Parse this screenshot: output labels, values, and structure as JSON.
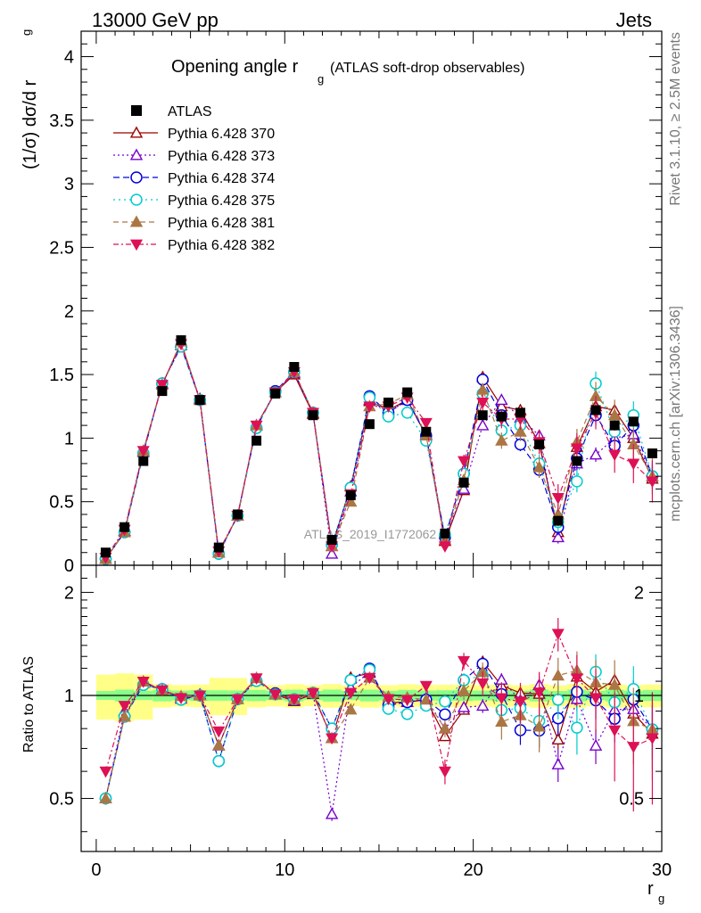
{
  "header": {
    "energy_label": "13000 GeV pp",
    "process_label": "Jets",
    "rivet_label": "Rivet 3.1.10, ≥ 2.5M events",
    "mcplots_label": "mcplots.cern.ch [arXiv:1306.3436]",
    "analysis_label": "ATLAS_2019_I1772062"
  },
  "chart_data": [
    {
      "type": "line",
      "title": "Opening angle r",
      "title_sub": "g",
      "title_note": "(ATLAS soft-drop observables)",
      "ylabel": "(1/σ) dσ/d r",
      "ylabel_sub": "g",
      "xlabel": "r",
      "xlabel_sub": "g",
      "xlim": [
        -0.8,
        30
      ],
      "ylim": [
        0,
        4.2
      ],
      "x_ticks": [
        "0",
        "10",
        "20",
        "30"
      ],
      "y_ticks": [
        "0",
        "0.5",
        "1",
        "1.5",
        "2",
        "2.5",
        "3",
        "3.5",
        "4"
      ],
      "x": [
        0.5,
        1.5,
        2.5,
        3.5,
        4.5,
        5.5,
        6.5,
        7.5,
        8.5,
        9.5,
        10.5,
        11.5,
        12.5,
        13.5,
        14.5,
        15.5,
        16.5,
        17.5,
        18.5,
        19.5,
        20.5,
        21.5,
        22.5,
        23.5,
        24.5,
        25.5,
        26.5,
        27.5,
        28.5,
        29.5
      ],
      "data": {
        "name": "ATLAS",
        "values": [
          0.1,
          0.3,
          0.82,
          1.37,
          1.77,
          1.3,
          0.14,
          0.4,
          0.98,
          1.35,
          1.56,
          1.18,
          0.2,
          0.55,
          1.11,
          1.28,
          1.36,
          1.05,
          0.25,
          0.65,
          1.18,
          1.17,
          1.2,
          0.95,
          0.35,
          0.82,
          1.22,
          1.1,
          1.13,
          0.88
        ]
      },
      "series": [
        {
          "name": "Pythia 6.428 370",
          "color": "#990000",
          "marker": "triangle-open",
          "values": [
            0.05,
            0.26,
            0.9,
            1.42,
            1.75,
            1.3,
            0.1,
            0.39,
            1.1,
            1.36,
            1.5,
            1.19,
            0.15,
            0.62,
            1.29,
            1.22,
            1.3,
            1.02,
            0.19,
            0.59,
            1.48,
            1.25,
            1.22,
            0.96,
            0.26,
            0.93,
            1.25,
            1.22,
            1.0,
            0.68
          ]
        },
        {
          "name": "Pythia 6.428 373",
          "color": "#7700cc",
          "marker": "triangle-open",
          "values": [
            0.05,
            0.27,
            0.89,
            1.43,
            1.73,
            1.31,
            0.1,
            0.39,
            1.1,
            1.36,
            1.51,
            1.2,
            0.09,
            0.58,
            1.3,
            1.2,
            1.3,
            1.03,
            0.2,
            0.6,
            1.1,
            1.3,
            1.16,
            1.02,
            0.22,
            0.8,
            0.87,
            1.0,
            1.03,
            0.7
          ]
        },
        {
          "name": "Pythia 6.428 374",
          "color": "#0000dd",
          "marker": "circle-open",
          "values": [
            0.05,
            0.26,
            0.88,
            1.43,
            1.72,
            1.3,
            0.09,
            0.39,
            1.08,
            1.37,
            1.52,
            1.2,
            0.16,
            0.61,
            1.33,
            1.2,
            1.3,
            1.02,
            0.22,
            0.72,
            1.46,
            1.18,
            0.95,
            0.75,
            0.3,
            0.84,
            1.18,
            0.94,
            1.1,
            0.7
          ]
        },
        {
          "name": "Pythia 6.428 375",
          "color": "#00cccc",
          "marker": "circle-open",
          "values": [
            0.05,
            0.26,
            0.88,
            1.43,
            1.72,
            1.3,
            0.09,
            0.39,
            1.08,
            1.36,
            1.52,
            1.2,
            0.16,
            0.61,
            1.32,
            1.17,
            1.2,
            0.98,
            0.24,
            0.72,
            1.35,
            1.06,
            1.1,
            0.8,
            0.34,
            0.66,
            1.43,
            1.05,
            1.18,
            0.7
          ]
        },
        {
          "name": "Pythia 6.428 381",
          "color": "#aa7744",
          "marker": "triangle-filled",
          "values": [
            0.05,
            0.26,
            0.9,
            1.42,
            1.76,
            1.3,
            0.1,
            0.39,
            1.1,
            1.36,
            1.52,
            1.2,
            0.15,
            0.5,
            1.25,
            1.27,
            1.34,
            1.02,
            0.2,
            0.67,
            1.38,
            0.98,
            1.05,
            0.77,
            0.4,
            0.97,
            1.33,
            1.18,
            0.95,
            0.7
          ]
        },
        {
          "name": "Pythia 6.428 382",
          "color": "#dd1155",
          "marker": "triangle-down-filled",
          "values": [
            0.06,
            0.28,
            0.9,
            1.42,
            1.74,
            1.3,
            0.11,
            0.39,
            1.1,
            1.36,
            1.52,
            1.2,
            0.15,
            0.56,
            1.25,
            1.25,
            1.32,
            1.12,
            0.15,
            0.82,
            1.28,
            1.15,
            1.15,
            0.97,
            0.53,
            0.92,
            1.2,
            0.87,
            0.8,
            0.66
          ]
        }
      ],
      "legend_position": "top-left"
    },
    {
      "type": "line",
      "ylabel": "Ratio to ATLAS",
      "ylim": [
        0.35,
        2.4
      ],
      "log_y": true,
      "y_ticks": [
        "0.5",
        "1",
        "2"
      ],
      "reference_line": 1.0,
      "band_colors": [
        "#88ff88",
        "#ffff88"
      ]
    }
  ]
}
